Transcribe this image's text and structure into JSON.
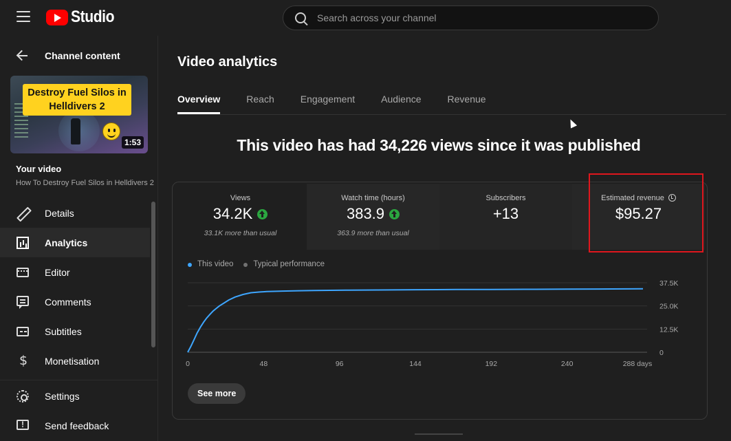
{
  "app": {
    "title": "Studio",
    "logo_icon": "youtube-play-icon"
  },
  "search": {
    "placeholder": "Search across your channel"
  },
  "sidebar": {
    "back_label": "Channel content",
    "thumbnail": {
      "title_line1": "Destroy Fuel Silos in",
      "title_line2": "Helldivers 2",
      "duration": "1:53"
    },
    "your_video_label": "Your video",
    "video_title": "How To Destroy Fuel Silos in Helldivers 2",
    "items": [
      {
        "label": "Details",
        "icon": "pencil-icon"
      },
      {
        "label": "Analytics",
        "icon": "analytics-icon",
        "active": true
      },
      {
        "label": "Editor",
        "icon": "film-icon"
      },
      {
        "label": "Comments",
        "icon": "comments-icon"
      },
      {
        "label": "Subtitles",
        "icon": "subtitles-icon"
      },
      {
        "label": "Monetisation",
        "icon": "dollar-icon"
      }
    ],
    "bottom_items": [
      {
        "label": "Settings",
        "icon": "gear-icon"
      },
      {
        "label": "Send feedback",
        "icon": "feedback-icon"
      }
    ]
  },
  "main": {
    "page_title": "Video analytics",
    "tabs": [
      {
        "label": "Overview",
        "active": true
      },
      {
        "label": "Reach"
      },
      {
        "label": "Engagement"
      },
      {
        "label": "Audience"
      },
      {
        "label": "Revenue"
      }
    ],
    "headline": "This video has had 34,226 views since it was published",
    "metrics": [
      {
        "label": "Views",
        "value": "34.2K",
        "sub": "33.1K more than usual",
        "trend": "up"
      },
      {
        "label": "Watch time (hours)",
        "value": "383.9",
        "sub": "363.9 more than usual",
        "trend": "up"
      },
      {
        "label": "Subscribers",
        "value": "+13",
        "sub": ""
      },
      {
        "label": "Estimated revenue",
        "value": "$95.27",
        "sub": ""
      }
    ],
    "legend": [
      {
        "label": "This video",
        "color": "#3ea6ff"
      },
      {
        "label": "Typical performance",
        "color": "#717171"
      }
    ],
    "see_more_label": "See more"
  },
  "chart_data": {
    "type": "line",
    "x_unit": "days",
    "x": [
      0,
      2,
      4,
      6,
      8,
      10,
      12,
      14,
      16,
      18,
      20,
      23,
      26,
      30,
      35,
      40,
      45,
      50,
      60,
      70,
      80,
      100,
      120,
      144,
      170,
      192,
      220,
      240,
      260,
      280,
      288
    ],
    "series": [
      {
        "name": "This video",
        "color": "#3ea6ff",
        "values": [
          0,
          3200,
          6800,
          10500,
          13500,
          16200,
          18500,
          20400,
          22200,
          23600,
          25000,
          26600,
          28200,
          29800,
          31200,
          32100,
          32500,
          32750,
          33000,
          33200,
          33350,
          33500,
          33600,
          33750,
          33850,
          33900,
          33980,
          34050,
          34120,
          34180,
          34226
        ]
      }
    ],
    "xticks": [
      "0",
      "48",
      "96",
      "144",
      "192",
      "240",
      "288 days"
    ],
    "yticks": [
      "0",
      "12.5K",
      "25.0K",
      "37.5K"
    ],
    "ylim": [
      0,
      37500
    ],
    "xlim": [
      0,
      288
    ],
    "grid": true
  }
}
